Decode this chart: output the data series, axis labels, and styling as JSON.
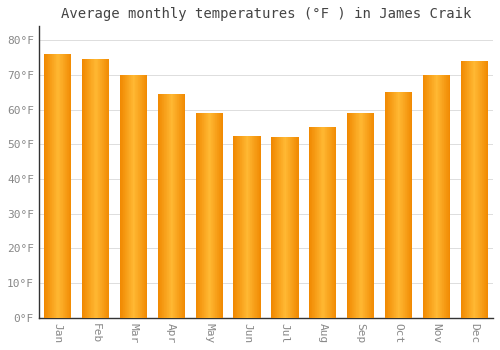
{
  "title": "Average monthly temperatures (°F ) in James Craik",
  "months": [
    "Jan",
    "Feb",
    "Mar",
    "Apr",
    "May",
    "Jun",
    "Jul",
    "Aug",
    "Sep",
    "Oct",
    "Nov",
    "Dec"
  ],
  "values": [
    76,
    74.5,
    70,
    64.5,
    59,
    52.5,
    52,
    55,
    59,
    65,
    70,
    74
  ],
  "yticks": [
    0,
    10,
    20,
    30,
    40,
    50,
    60,
    70,
    80
  ],
  "ytick_labels": [
    "0°F",
    "10°F",
    "20°F",
    "30°F",
    "40°F",
    "50°F",
    "60°F",
    "70°F",
    "80°F"
  ],
  "ylim": [
    0,
    84
  ],
  "bar_color_center": "#FFB833",
  "bar_color_edge": "#F08800",
  "background_color": "#FFFFFF",
  "plot_bg_color": "#FFFFFF",
  "grid_color": "#DDDDDD",
  "title_fontsize": 10,
  "tick_fontsize": 8,
  "xlabel_rotation": 270,
  "left_spine_color": "#333333",
  "bottom_spine_color": "#333333"
}
